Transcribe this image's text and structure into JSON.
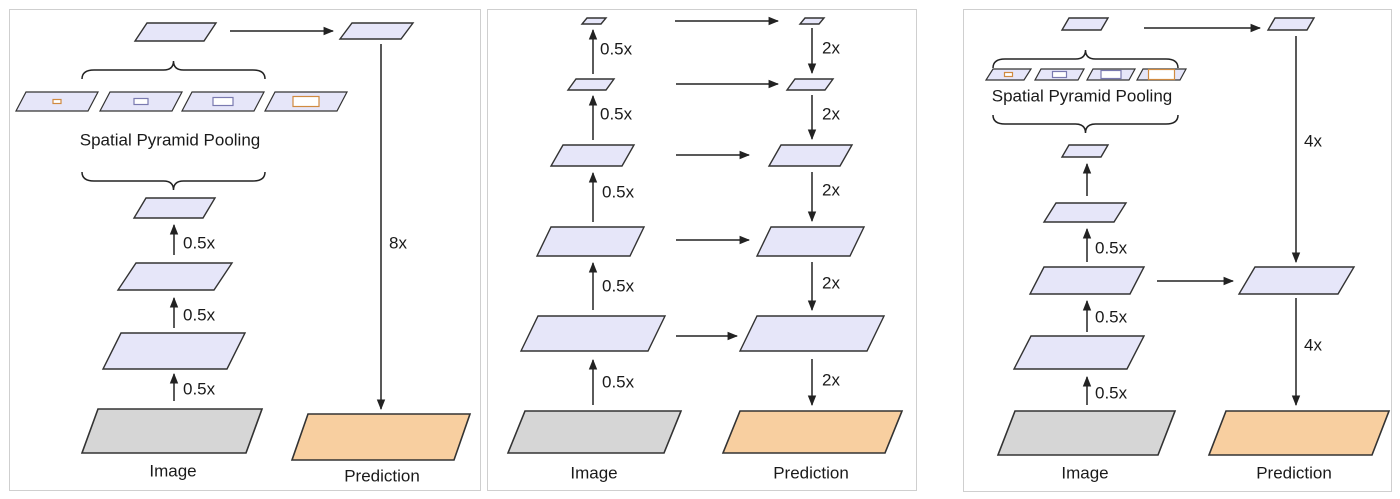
{
  "colors": {
    "feature_fill": "#e6e6f9",
    "image_fill": "#d6d6d6",
    "prediction_fill": "#f8cfa0",
    "stroke": "#333333",
    "pool_accent": "#d08a40"
  },
  "panels": [
    {
      "id": "spp",
      "labels": {
        "image": "Image",
        "prediction": "Prediction",
        "pooling": "Spatial Pyramid Pooling",
        "down_1": "0.5x",
        "down_2": "0.5x",
        "down_3": "0.5x",
        "up": "8x"
      }
    },
    {
      "id": "encoder-decoder",
      "labels": {
        "image": "Image",
        "prediction": "Prediction",
        "down_1": "0.5x",
        "down_2": "0.5x",
        "down_3": "0.5x",
        "down_4": "0.5x",
        "down_5": "0.5x",
        "up_1": "2x",
        "up_2": "2x",
        "up_3": "2x",
        "up_4": "2x",
        "up_5": "2x"
      }
    },
    {
      "id": "spp-encoder-decoder",
      "labels": {
        "image": "Image",
        "prediction": "Prediction",
        "pooling": "Spatial Pyramid Pooling",
        "down_1": "0.5x",
        "down_2": "0.5x",
        "down_3": "0.5x",
        "up_1": "4x",
        "up_2": "4x"
      }
    }
  ]
}
